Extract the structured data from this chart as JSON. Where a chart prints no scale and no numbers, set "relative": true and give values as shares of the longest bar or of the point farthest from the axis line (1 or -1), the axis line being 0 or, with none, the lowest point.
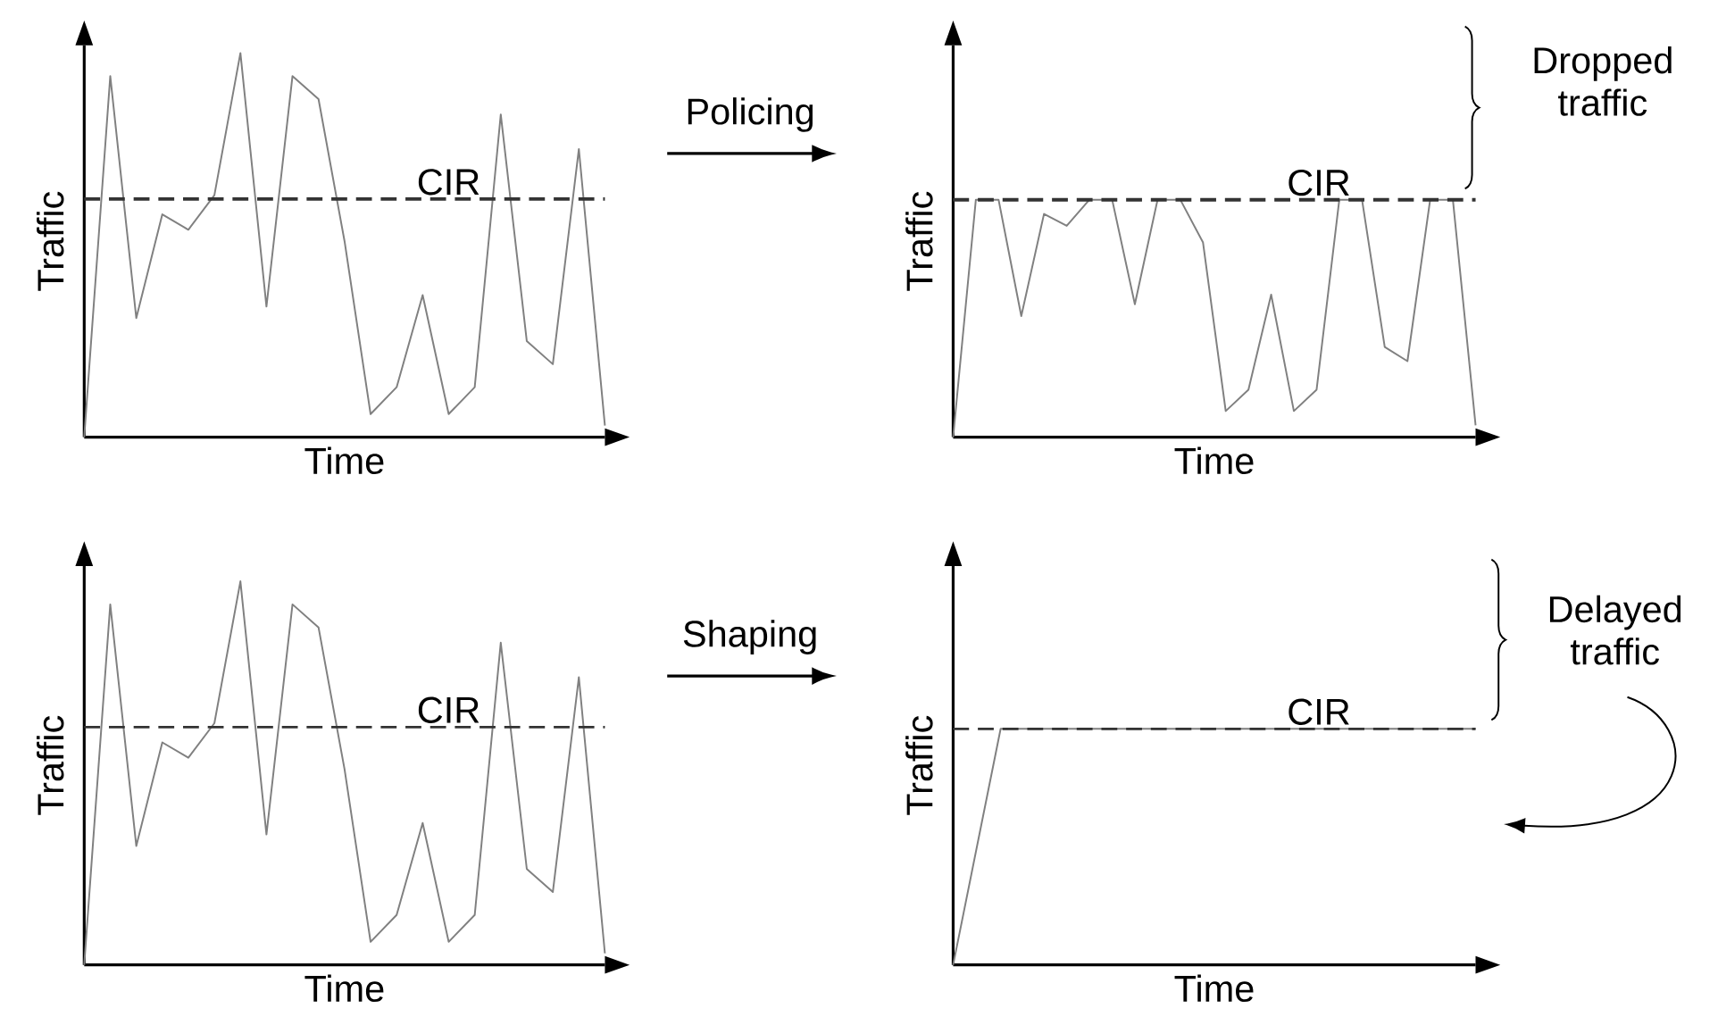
{
  "chart_data": [
    {
      "type": "line",
      "relative": true,
      "xlabel": "Time",
      "ylabel": "Traffic",
      "categories": [
        null,
        null,
        null,
        null,
        null,
        null,
        null,
        null,
        null,
        null,
        null,
        null,
        null,
        null,
        null,
        null,
        null,
        null,
        null,
        null,
        null
      ],
      "series": [
        {
          "color": "#808080",
          "values": [
            0,
            0.94,
            0.31,
            0.58,
            0.54,
            0.63,
            1,
            0.34,
            0.94,
            0.88,
            0.51,
            0.06,
            0.13,
            0.37,
            0.06,
            0.13,
            0.84,
            0.25,
            0.19,
            0.75,
            0.03
          ]
        }
      ],
      "ref_lines": [
        {
          "axis": "y",
          "value": 0.62,
          "label": "CIR",
          "color": "#333333",
          "line_style": "dashed"
        }
      ]
    },
    {
      "type": "line",
      "relative": true,
      "xlabel": "Time",
      "ylabel": "Traffic",
      "categories": [
        null,
        null,
        null,
        null,
        null,
        null,
        null,
        null,
        null,
        null,
        null,
        null,
        null,
        null,
        null,
        null,
        null,
        null,
        null,
        null,
        null,
        null,
        null,
        null
      ],
      "series": [
        {
          "color": "#808080",
          "values": [
            0,
            1,
            1,
            0.51,
            0.94,
            0.89,
            1,
            1,
            0.56,
            1,
            1,
            0.82,
            0.11,
            0.2,
            0.6,
            0.11,
            0.2,
            1,
            1,
            0.38,
            0.32,
            1,
            1,
            0.05
          ]
        }
      ],
      "ref_lines": [
        {
          "axis": "y",
          "value": 1,
          "label": "CIR",
          "color": "#333333",
          "line_style": "dashed"
        }
      ],
      "annotations": [
        "Policing",
        "Dropped traffic"
      ]
    },
    {
      "type": "line",
      "relative": true,
      "xlabel": "Time",
      "ylabel": "Traffic",
      "categories": [
        null,
        null,
        null,
        null,
        null,
        null,
        null,
        null,
        null,
        null,
        null,
        null,
        null,
        null,
        null,
        null,
        null,
        null,
        null,
        null,
        null
      ],
      "series": [
        {
          "color": "#808080",
          "values": [
            0,
            0.94,
            0.31,
            0.58,
            0.54,
            0.63,
            1,
            0.34,
            0.94,
            0.88,
            0.51,
            0.06,
            0.13,
            0.37,
            0.06,
            0.13,
            0.84,
            0.25,
            0.19,
            0.75,
            0.03
          ]
        }
      ],
      "ref_lines": [
        {
          "axis": "y",
          "value": 0.62,
          "label": "CIR",
          "color": "#333333",
          "line_style": "dashed"
        }
      ]
    },
    {
      "type": "line",
      "relative": true,
      "xlabel": "Time",
      "ylabel": "Traffic",
      "categories": [
        null,
        null,
        null,
        null,
        null,
        null,
        null,
        null,
        null,
        null,
        null,
        null
      ],
      "series": [
        {
          "color": "#808080",
          "values": [
            0,
            1,
            1,
            1,
            1,
            1,
            1,
            1,
            1,
            1,
            1,
            1
          ]
        }
      ],
      "ref_lines": [
        {
          "axis": "y",
          "value": 1,
          "label": "CIR",
          "color": "#333333",
          "line_style": "dashed"
        }
      ],
      "annotations": [
        "Shaping",
        "Delayed traffic"
      ]
    }
  ]
}
